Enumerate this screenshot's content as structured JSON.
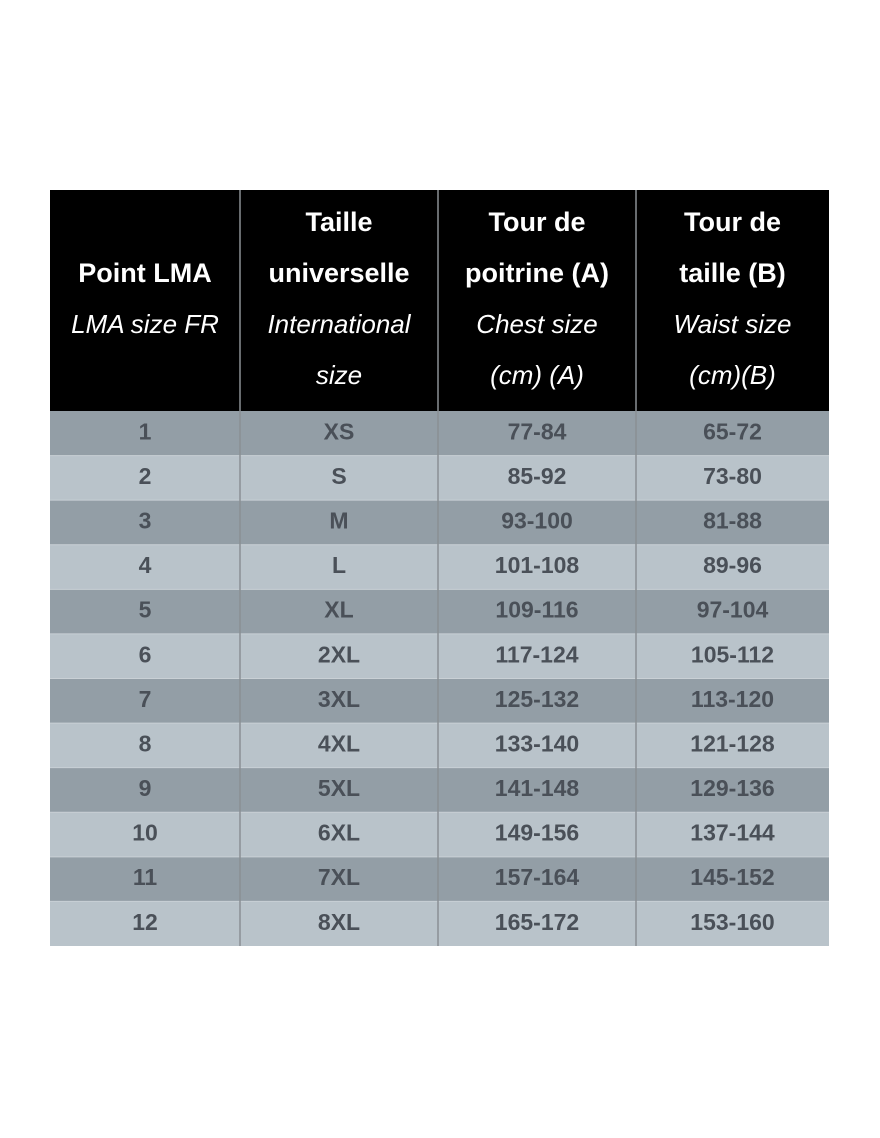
{
  "table": {
    "header": [
      {
        "bold": [
          "Point LMA"
        ],
        "italic": [
          "LMA size FR"
        ]
      },
      {
        "bold": [
          "Taille",
          "universelle"
        ],
        "italic": [
          "International",
          "size"
        ]
      },
      {
        "bold": [
          "Tour de",
          "poitrine (A)"
        ],
        "italic": [
          "Chest size",
          "(cm) (A)"
        ]
      },
      {
        "bold": [
          "Tour de",
          "taille (B)"
        ],
        "italic": [
          "Waist size",
          "(cm)(B)"
        ]
      }
    ],
    "rows": [
      [
        "1",
        "XS",
        "77-84",
        "65-72"
      ],
      [
        "2",
        "S",
        "85-92",
        "73-80"
      ],
      [
        "3",
        "M",
        "93-100",
        "81-88"
      ],
      [
        "4",
        "L",
        "101-108",
        "89-96"
      ],
      [
        "5",
        "XL",
        "109-116",
        "97-104"
      ],
      [
        "6",
        "2XL",
        "117-124",
        "105-112"
      ],
      [
        "7",
        "3XL",
        "125-132",
        "113-120"
      ],
      [
        "8",
        "4XL",
        "133-140",
        "121-128"
      ],
      [
        "9",
        "5XL",
        "141-148",
        "129-136"
      ],
      [
        "10",
        "6XL",
        "149-156",
        "137-144"
      ],
      [
        "11",
        "7XL",
        "157-164",
        "145-152"
      ],
      [
        "12",
        "8XL",
        "165-172",
        "153-160"
      ]
    ]
  }
}
